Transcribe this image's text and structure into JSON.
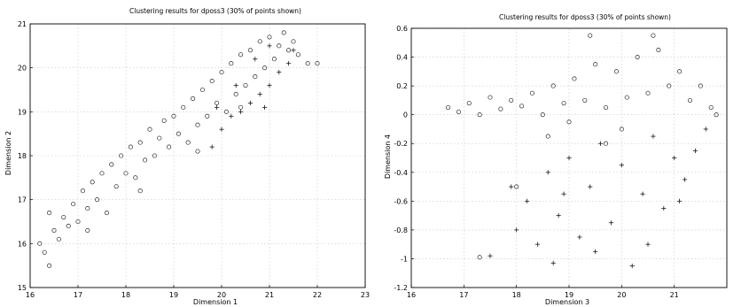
{
  "chart_data": [
    {
      "type": "scatter",
      "title": "Clustering results for dposs3 (30% of points shown)",
      "xlabel": "Dimension 1",
      "ylabel": "Dimension 2",
      "xlim": [
        16,
        23
      ],
      "ylim": [
        15,
        21
      ],
      "xticks": [
        "16",
        "17",
        "18",
        "19",
        "20",
        "21",
        "22",
        "23"
      ],
      "yticks": [
        "15",
        "16",
        "17",
        "18",
        "19",
        "20",
        "21"
      ],
      "grid": true,
      "series": [
        {
          "marker": "circle",
          "points": [
            [
              16.2,
              16.0
            ],
            [
              16.3,
              15.8
            ],
            [
              16.4,
              15.5
            ],
            [
              16.5,
              16.3
            ],
            [
              16.6,
              16.1
            ],
            [
              16.7,
              16.6
            ],
            [
              16.8,
              16.4
            ],
            [
              16.9,
              16.9
            ],
            [
              17.0,
              16.5
            ],
            [
              17.1,
              17.2
            ],
            [
              17.2,
              16.8
            ],
            [
              17.3,
              17.4
            ],
            [
              17.4,
              17.0
            ],
            [
              17.5,
              17.6
            ],
            [
              17.6,
              16.7
            ],
            [
              17.7,
              17.8
            ],
            [
              17.8,
              17.3
            ],
            [
              17.9,
              18.0
            ],
            [
              18.0,
              17.6
            ],
            [
              18.1,
              18.2
            ],
            [
              18.2,
              17.5
            ],
            [
              18.3,
              18.3
            ],
            [
              18.4,
              17.9
            ],
            [
              18.5,
              18.6
            ],
            [
              18.6,
              18.0
            ],
            [
              18.7,
              18.4
            ],
            [
              18.8,
              18.8
            ],
            [
              18.9,
              18.2
            ],
            [
              19.0,
              18.9
            ],
            [
              19.1,
              18.5
            ],
            [
              19.2,
              19.1
            ],
            [
              19.3,
              18.3
            ],
            [
              19.4,
              19.3
            ],
            [
              19.5,
              18.7
            ],
            [
              19.6,
              19.5
            ],
            [
              19.7,
              18.9
            ],
            [
              19.8,
              19.7
            ],
            [
              19.9,
              19.2
            ],
            [
              20.0,
              19.9
            ],
            [
              20.1,
              19.0
            ],
            [
              20.2,
              20.1
            ],
            [
              20.3,
              19.4
            ],
            [
              20.4,
              20.3
            ],
            [
              20.5,
              19.6
            ],
            [
              20.6,
              20.4
            ],
            [
              20.7,
              19.8
            ],
            [
              20.8,
              20.6
            ],
            [
              20.9,
              20.0
            ],
            [
              21.0,
              20.7
            ],
            [
              21.1,
              20.2
            ],
            [
              21.2,
              20.5
            ],
            [
              21.3,
              20.8
            ],
            [
              21.4,
              20.4
            ],
            [
              21.5,
              20.6
            ],
            [
              21.6,
              20.3
            ],
            [
              21.8,
              20.1
            ],
            [
              22.0,
              20.1
            ],
            [
              16.4,
              16.7
            ],
            [
              17.2,
              16.3
            ],
            [
              18.3,
              17.2
            ],
            [
              19.5,
              18.1
            ],
            [
              20.4,
              19.1
            ]
          ]
        },
        {
          "marker": "plus",
          "points": [
            [
              19.8,
              18.2
            ],
            [
              20.0,
              18.6
            ],
            [
              20.2,
              18.9
            ],
            [
              20.4,
              19.0
            ],
            [
              20.6,
              19.2
            ],
            [
              20.8,
              19.4
            ],
            [
              21.0,
              19.6
            ],
            [
              21.2,
              19.9
            ],
            [
              21.4,
              20.1
            ],
            [
              21.0,
              20.5
            ],
            [
              20.7,
              20.2
            ],
            [
              20.3,
              19.6
            ],
            [
              19.9,
              19.1
            ],
            [
              21.5,
              20.4
            ],
            [
              20.9,
              19.1
            ]
          ]
        }
      ]
    },
    {
      "type": "scatter",
      "title": "Clustering results for dposs3 (30% of points shown)",
      "xlabel": "Dimension 3",
      "ylabel": "Dimension 4",
      "xlim": [
        16,
        22
      ],
      "ylim": [
        -1.2,
        0.6
      ],
      "xticks": [
        "16",
        "17",
        "18",
        "19",
        "20",
        "21"
      ],
      "yticks": [
        "-1.2",
        "-1",
        "-0.8",
        "-0.6",
        "-0.4",
        "-0.2",
        "0",
        "0.2",
        "0.4",
        "0.6"
      ],
      "grid": true,
      "series": [
        {
          "marker": "circle",
          "points": [
            [
              16.7,
              0.05
            ],
            [
              16.9,
              0.02
            ],
            [
              17.1,
              0.08
            ],
            [
              17.3,
              0.0
            ],
            [
              17.5,
              0.12
            ],
            [
              17.7,
              0.04
            ],
            [
              17.9,
              0.1
            ],
            [
              18.1,
              0.06
            ],
            [
              18.3,
              0.15
            ],
            [
              18.5,
              0.0
            ],
            [
              18.7,
              0.2
            ],
            [
              18.9,
              0.08
            ],
            [
              19.1,
              0.25
            ],
            [
              19.3,
              0.1
            ],
            [
              19.5,
              0.35
            ],
            [
              19.7,
              0.05
            ],
            [
              19.9,
              0.3
            ],
            [
              20.1,
              0.12
            ],
            [
              20.3,
              0.4
            ],
            [
              20.5,
              0.15
            ],
            [
              20.7,
              0.45
            ],
            [
              20.9,
              0.2
            ],
            [
              21.1,
              0.3
            ],
            [
              21.3,
              0.1
            ],
            [
              21.5,
              0.2
            ],
            [
              21.7,
              0.05
            ],
            [
              19.4,
              0.55
            ],
            [
              20.6,
              0.55
            ],
            [
              19.0,
              -0.05
            ],
            [
              20.0,
              -0.1
            ],
            [
              18.0,
              -0.5
            ],
            [
              17.3,
              -0.99
            ],
            [
              18.6,
              -0.15
            ],
            [
              19.7,
              -0.2
            ],
            [
              21.8,
              0.0
            ]
          ]
        },
        {
          "marker": "plus",
          "points": [
            [
              17.5,
              -0.98
            ],
            [
              17.9,
              -0.5
            ],
            [
              18.0,
              -0.8
            ],
            [
              18.2,
              -0.6
            ],
            [
              18.4,
              -0.9
            ],
            [
              18.6,
              -0.4
            ],
            [
              18.8,
              -0.7
            ],
            [
              19.0,
              -0.3
            ],
            [
              19.2,
              -0.85
            ],
            [
              19.4,
              -0.5
            ],
            [
              19.6,
              -0.2
            ],
            [
              19.8,
              -0.75
            ],
            [
              20.0,
              -0.35
            ],
            [
              20.2,
              -1.05
            ],
            [
              20.4,
              -0.55
            ],
            [
              20.6,
              -0.15
            ],
            [
              20.8,
              -0.65
            ],
            [
              21.0,
              -0.3
            ],
            [
              21.2,
              -0.45
            ],
            [
              21.4,
              -0.25
            ],
            [
              21.6,
              -0.1
            ],
            [
              18.7,
              -1.03
            ],
            [
              19.5,
              -0.95
            ],
            [
              20.5,
              -0.9
            ],
            [
              21.1,
              -0.6
            ],
            [
              18.9,
              -0.55
            ]
          ]
        }
      ]
    }
  ]
}
